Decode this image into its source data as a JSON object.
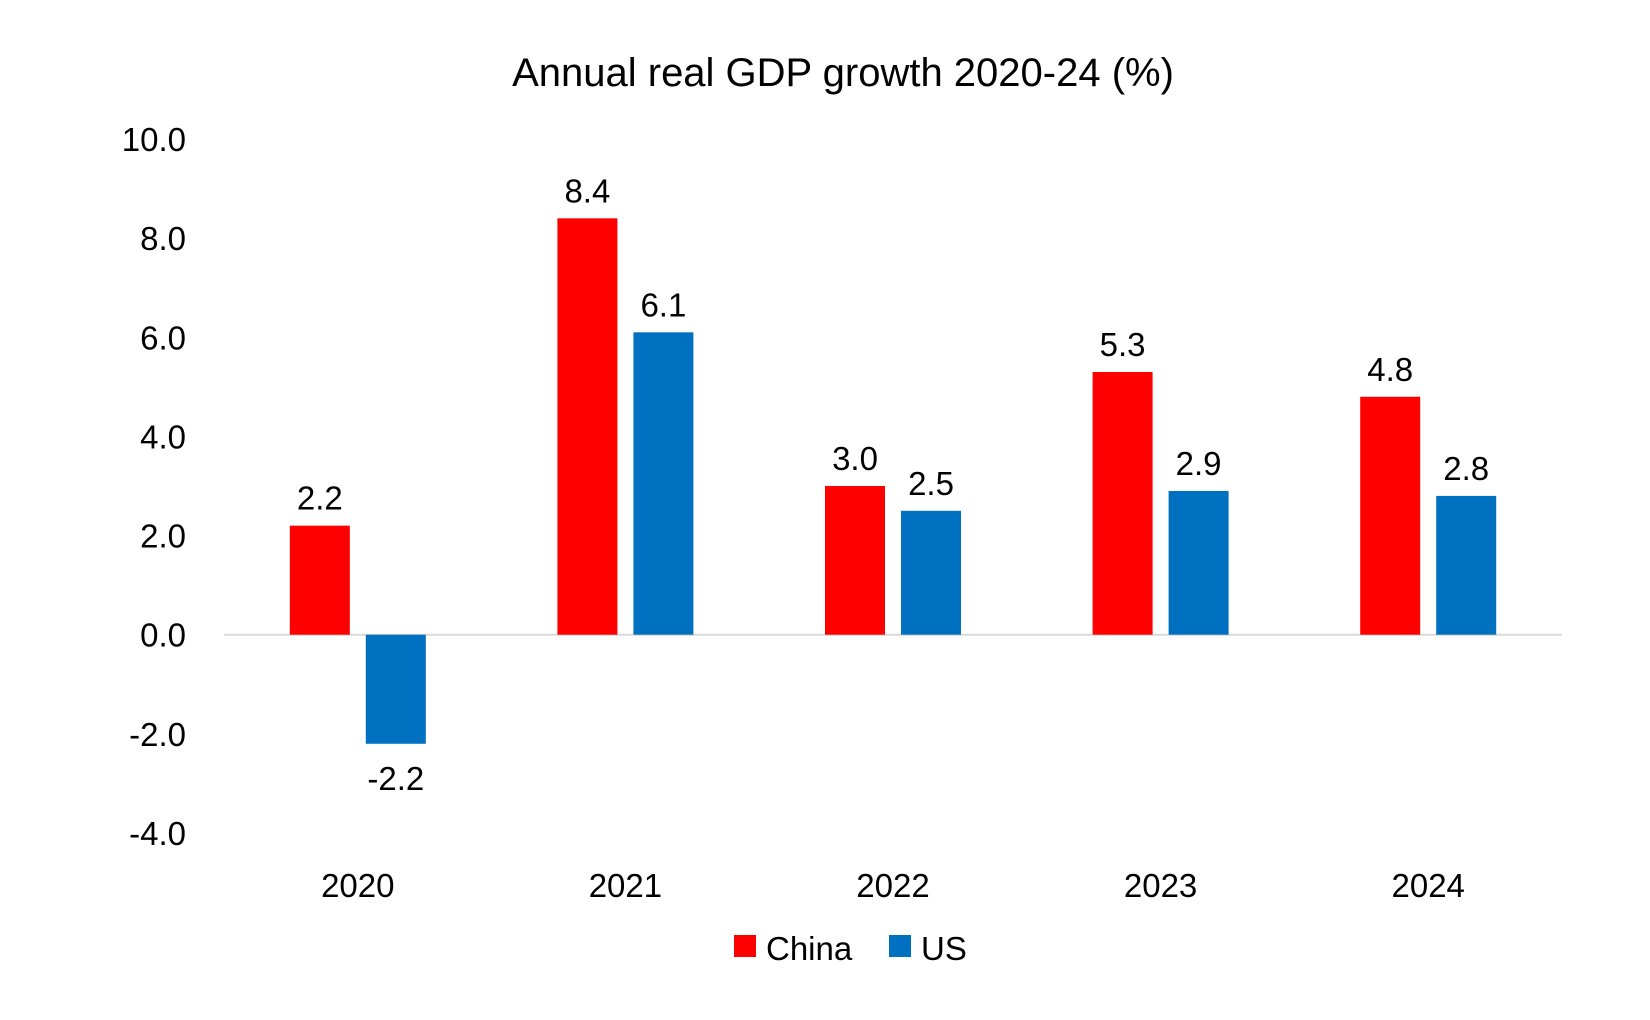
{
  "chart_data": {
    "type": "bar",
    "title": "Annual real GDP growth 2020-24 (%)",
    "xlabel": "",
    "ylabel": "",
    "categories": [
      "2020",
      "2021",
      "2022",
      "2023",
      "2024"
    ],
    "series": [
      {
        "name": "China",
        "color": "#ff0000",
        "values": [
          2.2,
          8.4,
          3.0,
          5.3,
          4.8
        ],
        "labels": [
          "2.2",
          "8.4",
          "3.0",
          "5.3",
          "4.8"
        ]
      },
      {
        "name": "US",
        "color": "#0070c0",
        "values": [
          -2.2,
          6.1,
          2.5,
          2.9,
          2.8
        ],
        "labels": [
          "-2.2",
          "6.1",
          "2.5",
          "2.9",
          "2.8"
        ]
      }
    ],
    "ylim": [
      -4.0,
      10.0
    ],
    "yticks": [
      -4.0,
      -2.0,
      0.0,
      2.0,
      4.0,
      6.0,
      8.0,
      10.0
    ],
    "ytick_labels": [
      "-4.0",
      "-2.0",
      "0.0",
      "2.0",
      "4.0",
      "6.0",
      "8.0",
      "10.0"
    ],
    "grid": false,
    "legend_position": "bottom-center",
    "zero_line_color": "#d9d9d9"
  }
}
